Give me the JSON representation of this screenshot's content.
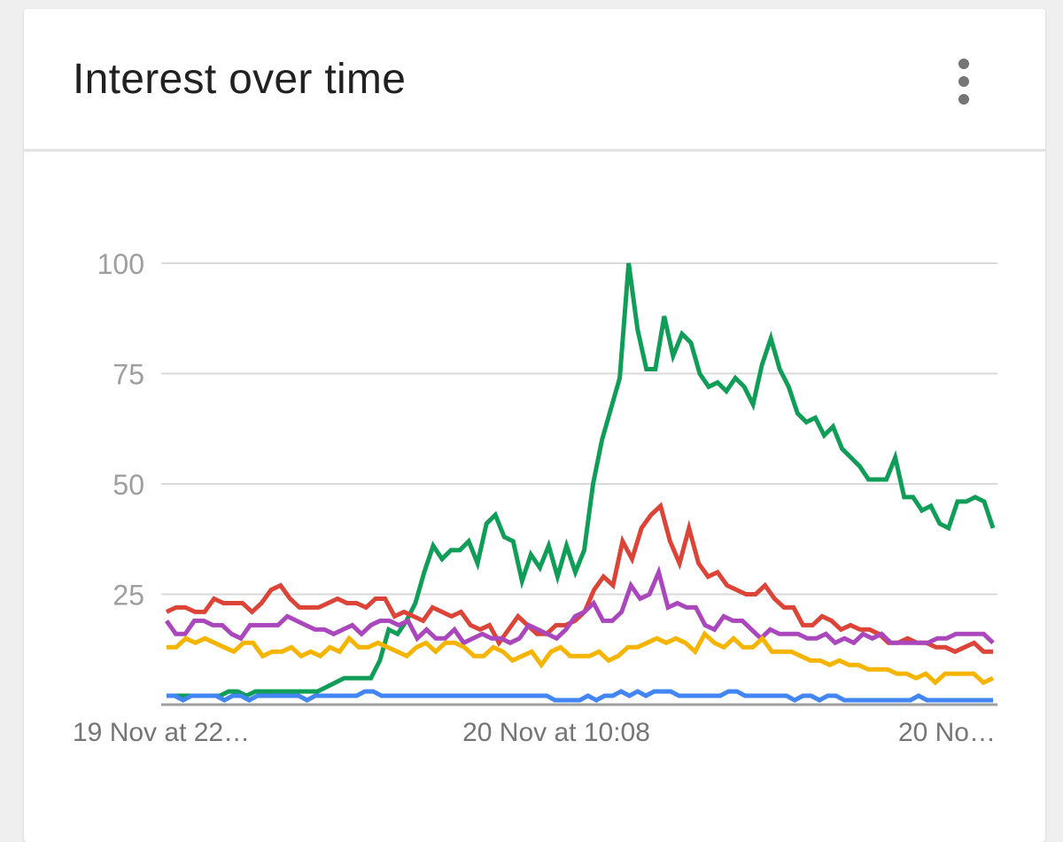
{
  "card": {
    "title": "Interest over time",
    "menu_icon": "more-vert-icon"
  },
  "chart_data": {
    "type": "line",
    "title": "Interest over time",
    "ylim": [
      0,
      100
    ],
    "yticks": [
      "100",
      "75",
      "50",
      "25"
    ],
    "x_tick_labels": [
      "19 Nov at 22…",
      "20 Nov at 10:08",
      "20 No…"
    ],
    "grid": true,
    "colors": [
      "#0f9d58",
      "#db4437",
      "#ab47bc",
      "#f4b400",
      "#4285f4"
    ],
    "series": [
      {
        "color": "#0f9d58",
        "values": [
          2,
          2,
          2,
          2,
          2,
          2,
          2,
          3,
          3,
          2,
          3,
          3,
          3,
          3,
          3,
          3,
          3,
          3,
          4,
          5,
          6,
          6,
          6,
          6,
          10,
          17,
          16,
          19,
          23,
          30,
          36,
          33,
          35,
          35,
          37,
          32,
          41,
          43,
          38,
          37,
          28,
          34,
          31,
          36,
          29,
          36,
          30,
          35,
          50,
          60,
          67,
          74,
          100,
          85,
          76,
          76,
          88,
          79,
          84,
          82,
          75,
          72,
          73,
          71,
          74,
          72,
          68,
          77,
          83,
          76,
          72,
          66,
          64,
          65,
          61,
          63,
          58,
          56,
          54,
          51,
          51,
          51,
          56,
          47,
          47,
          44,
          45,
          41,
          40,
          46,
          46,
          47,
          46,
          40
        ]
      },
      {
        "color": "#db4437",
        "values": [
          21,
          22,
          22,
          21,
          21,
          24,
          23,
          23,
          23,
          21,
          23,
          26,
          27,
          24,
          22,
          22,
          22,
          23,
          24,
          23,
          23,
          22,
          24,
          24,
          20,
          21,
          20,
          19,
          22,
          21,
          20,
          21,
          18,
          17,
          18,
          14,
          17,
          20,
          18,
          16,
          16,
          18,
          18,
          19,
          21,
          26,
          29,
          27,
          37,
          33,
          40,
          43,
          45,
          37,
          32,
          40,
          32,
          29,
          30,
          27,
          26,
          25,
          25,
          27,
          24,
          22,
          22,
          18,
          18,
          20,
          19,
          17,
          18,
          17,
          17,
          16,
          14,
          14,
          15,
          14,
          14,
          13,
          13,
          12,
          13,
          14,
          12,
          12
        ]
      },
      {
        "color": "#ab47bc",
        "values": [
          19,
          16,
          16,
          19,
          19,
          18,
          18,
          16,
          15,
          18,
          18,
          18,
          18,
          20,
          19,
          18,
          17,
          17,
          16,
          17,
          18,
          16,
          18,
          19,
          19,
          18,
          19,
          15,
          17,
          15,
          15,
          17,
          14,
          15,
          16,
          15,
          15,
          14,
          15,
          18,
          17,
          16,
          15,
          17,
          20,
          21,
          23,
          19,
          19,
          21,
          27,
          24,
          25,
          30,
          22,
          23,
          22,
          22,
          18,
          17,
          20,
          19,
          19,
          17,
          15,
          17,
          16,
          16,
          16,
          15,
          15,
          16,
          14,
          15,
          14,
          16,
          15,
          16,
          14,
          14,
          14,
          14,
          14,
          15,
          15,
          16,
          16,
          16,
          16,
          14
        ]
      },
      {
        "color": "#f4b400",
        "values": [
          13,
          13,
          15,
          14,
          15,
          14,
          13,
          12,
          14,
          14,
          11,
          12,
          12,
          13,
          11,
          12,
          11,
          13,
          12,
          15,
          13,
          13,
          14,
          13,
          12,
          11,
          13,
          14,
          12,
          14,
          14,
          13,
          11,
          11,
          13,
          12,
          10,
          11,
          12,
          9,
          12,
          13,
          11,
          11,
          11,
          12,
          10,
          11,
          13,
          13,
          14,
          15,
          14,
          15,
          14,
          12,
          16,
          14,
          13,
          15,
          13,
          13,
          15,
          12,
          12,
          12,
          11,
          10,
          10,
          9,
          10,
          9,
          9,
          8,
          8,
          8,
          7,
          7,
          6,
          7,
          5,
          7,
          7,
          7,
          7,
          5,
          6
        ]
      },
      {
        "color": "#4285f4",
        "values": [
          2,
          2,
          1,
          2,
          2,
          2,
          2,
          1,
          2,
          2,
          1,
          2,
          2,
          2,
          2,
          2,
          2,
          1,
          2,
          2,
          2,
          2,
          2,
          2,
          3,
          3,
          2,
          2,
          2,
          2,
          2,
          2,
          2,
          2,
          2,
          2,
          2,
          2,
          2,
          2,
          2,
          2,
          2,
          2,
          2,
          2,
          2,
          1,
          1,
          1,
          1,
          2,
          1,
          2,
          2,
          3,
          2,
          3,
          2,
          3,
          3,
          3,
          2,
          2,
          2,
          2,
          2,
          2,
          3,
          3,
          2,
          2,
          2,
          2,
          2,
          2,
          1,
          2,
          2,
          1,
          2,
          2,
          1,
          1,
          1,
          1,
          1,
          1,
          1,
          1,
          1,
          2,
          1,
          1,
          1,
          1,
          1,
          1,
          1,
          1,
          1
        ]
      }
    ]
  }
}
